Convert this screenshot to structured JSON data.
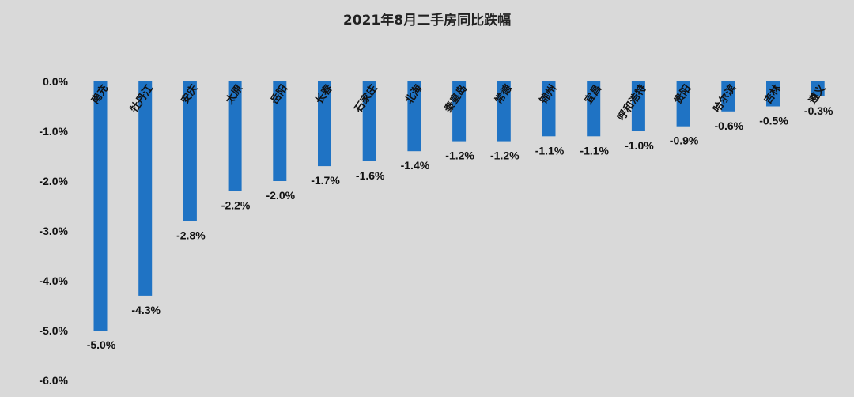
{
  "chart_data": {
    "type": "bar",
    "title": "2021年8月二手房同比跌幅",
    "categories": [
      "南充",
      "牡丹江",
      "安庆",
      "太原",
      "岳阳",
      "长春",
      "石家庄",
      "北海",
      "秦皇岛",
      "常德",
      "锦州",
      "宜昌",
      "呼和浩特",
      "贵阳",
      "哈尔滨",
      "吉林",
      "遵义"
    ],
    "values": [
      -5.0,
      -4.3,
      -2.8,
      -2.2,
      -2.0,
      -1.7,
      -1.6,
      -1.4,
      -1.2,
      -1.2,
      -1.1,
      -1.1,
      -1.0,
      -0.9,
      -0.6,
      -0.5,
      -0.3
    ],
    "data_labels": [
      "-5.0%",
      "-4.3%",
      "-2.8%",
      "-2.2%",
      "-2.0%",
      "-1.7%",
      "-1.6%",
      "-1.4%",
      "-1.2%",
      "-1.2%",
      "-1.1%",
      "-1.1%",
      "-1.0%",
      "-0.9%",
      "-0.6%",
      "-0.5%",
      "-0.3%"
    ],
    "y_ticks": [
      "0.0%",
      "-1.0%",
      "-2.0%",
      "-3.0%",
      "-4.0%",
      "-5.0%",
      "-6.0%"
    ],
    "ylim": [
      -6.0,
      0.0
    ],
    "grid": false,
    "legend": "none",
    "bar_color": "#1f73c4",
    "background_color": "#d9d9d9"
  }
}
